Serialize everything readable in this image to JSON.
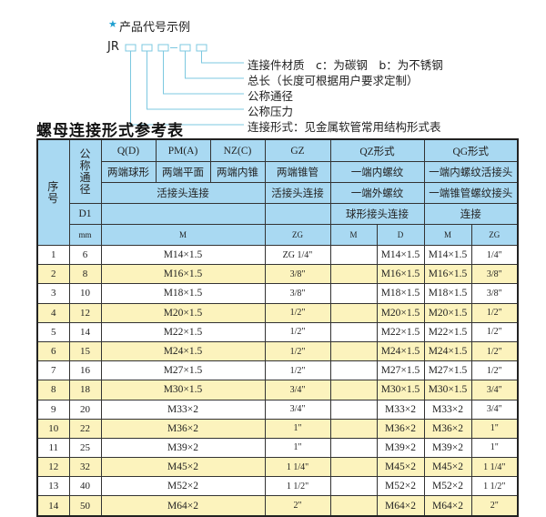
{
  "code_example": {
    "title": "产品代号示例",
    "prefix": "JR",
    "labels": [
      "连接件材质　c：为碳钢　b：为不锈钢",
      "总长（长度可根据用户要求定制）",
      "公称通径",
      "公称压力",
      "连接形式：见金属软管常用结构形式表"
    ]
  },
  "table_title": "螺母连接形式参考表",
  "header": {
    "seq": "序号",
    "dn": "公称通径",
    "d1": "D1",
    "mm": "mm",
    "types": [
      "Q(D)",
      "PM(A)",
      "NZ(C)",
      "GZ",
      "QZ形式",
      "QG形式"
    ],
    "desc": [
      "两端球形",
      "两端平面",
      "两端内锥",
      "两端锥管",
      "一端内螺纹",
      "一端内螺纹活接头"
    ],
    "conn": [
      "活接头连接",
      "活接头连接",
      "一端外螺纹",
      "一端锥管螺纹接头"
    ],
    "conn2": [
      "球形接头连接",
      "连接"
    ],
    "units": [
      "M",
      "ZG",
      "M",
      "D",
      "M",
      "ZG"
    ]
  },
  "rows": [
    {
      "no": "1",
      "dn": "6",
      "m": "M14×1.5",
      "zg": "ZG 1/4\"",
      "qzm": "",
      "qzd": "M14×1.5",
      "qgm": "M14×1.5",
      "qgzg": "1/4\""
    },
    {
      "no": "2",
      "dn": "8",
      "m": "M16×1.5",
      "zg": "3/8\"",
      "qzm": "",
      "qzd": "M16×1.5",
      "qgm": "M16×1.5",
      "qgzg": "3/8\""
    },
    {
      "no": "3",
      "dn": "10",
      "m": "M18×1.5",
      "zg": "3/8\"",
      "qzm": "",
      "qzd": "M18×1.5",
      "qgm": "M18×1.5",
      "qgzg": "3/8\""
    },
    {
      "no": "4",
      "dn": "12",
      "m": "M20×1.5",
      "zg": "1/2\"",
      "qzm": "",
      "qzd": "M20×1.5",
      "qgm": "M20×1.5",
      "qgzg": "1/2\""
    },
    {
      "no": "5",
      "dn": "14",
      "m": "M22×1.5",
      "zg": "1/2\"",
      "qzm": "",
      "qzd": "M22×1.5",
      "qgm": "M22×1.5",
      "qgzg": "1/2\""
    },
    {
      "no": "6",
      "dn": "15",
      "m": "M24×1.5",
      "zg": "1/2\"",
      "qzm": "",
      "qzd": "M24×1.5",
      "qgm": "M24×1.5",
      "qgzg": "1/2\""
    },
    {
      "no": "7",
      "dn": "16",
      "m": "M27×1.5",
      "zg": "1/2\"",
      "qzm": "",
      "qzd": "M27×1.5",
      "qgm": "M27×1.5",
      "qgzg": "1/2\""
    },
    {
      "no": "8",
      "dn": "18",
      "m": "M30×1.5",
      "zg": "3/4\"",
      "qzm": "",
      "qzd": "M30×1.5",
      "qgm": "M30×1.5",
      "qgzg": "3/4\""
    },
    {
      "no": "9",
      "dn": "20",
      "m": "M33×2",
      "zg": "3/4\"",
      "qzm": "",
      "qzd": "M33×2",
      "qgm": "M33×2",
      "qgzg": "3/4\""
    },
    {
      "no": "10",
      "dn": "22",
      "m": "M36×2",
      "zg": "1\"",
      "qzm": "",
      "qzd": "M36×2",
      "qgm": "M36×2",
      "qgzg": "1\""
    },
    {
      "no": "11",
      "dn": "25",
      "m": "M39×2",
      "zg": "1\"",
      "qzm": "",
      "qzd": "M39×2",
      "qgm": "M39×2",
      "qgzg": "1\""
    },
    {
      "no": "12",
      "dn": "32",
      "m": "M45×2",
      "zg": "1 1/4\"",
      "qzm": "",
      "qzd": "M45×2",
      "qgm": "M45×2",
      "qgzg": "1 1/4\""
    },
    {
      "no": "13",
      "dn": "40",
      "m": "M52×2",
      "zg": "1 1/2\"",
      "qzm": "",
      "qzd": "M52×2",
      "qgm": "M52×2",
      "qgzg": "1 1/2\""
    },
    {
      "no": "14",
      "dn": "50",
      "m": "M64×2",
      "zg": "2\"",
      "qzm": "",
      "qzd": "M64×2",
      "qgm": "M64×2",
      "qgzg": "2\""
    }
  ],
  "colors": {
    "header": "#a9d9f2",
    "row_alt": "#fcf3bd",
    "accent": "#1e9fd0"
  }
}
